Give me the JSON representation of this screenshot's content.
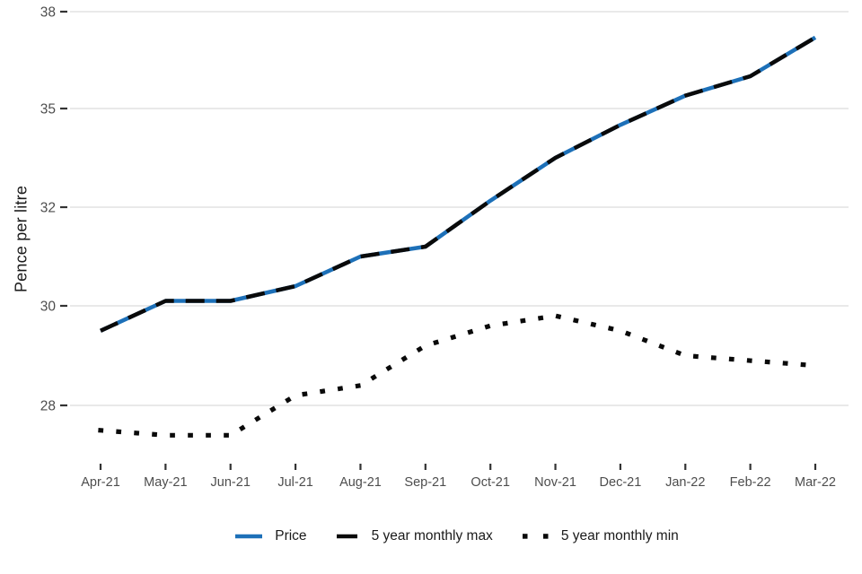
{
  "chart_data": {
    "type": "line",
    "title": "",
    "xlabel": "",
    "ylabel": "Pence per litre",
    "categories": [
      "Apr-21",
      "May-21",
      "Jun-21",
      "Jul-21",
      "Aug-21",
      "Sep-21",
      "Oct-21",
      "Nov-21",
      "Dec-21",
      "Jan-22",
      "Feb-22",
      "Mar-22"
    ],
    "y_ticks": [
      "38",
      "35",
      "32",
      "30",
      "28"
    ],
    "y_tick_values": [
      38,
      35,
      32,
      30,
      28
    ],
    "grid": "horizontal",
    "legend_position": "bottom",
    "series": [
      {
        "name": "Price",
        "style": "solid",
        "color": "#1d70b8",
        "values": [
          29.5,
          30.1,
          30.1,
          30.4,
          31.0,
          31.2,
          32.2,
          33.5,
          34.5,
          35.4,
          36.0,
          37.2
        ]
      },
      {
        "name": "5 year monthly max",
        "style": "dashed",
        "color": "#0a0a0a",
        "values": [
          29.5,
          30.1,
          30.1,
          30.4,
          31.0,
          31.2,
          32.2,
          33.5,
          34.5,
          35.4,
          36.0,
          37.2
        ]
      },
      {
        "name": "5 year monthly min",
        "style": "dotted",
        "color": "#0a0a0a",
        "values": [
          27.5,
          27.4,
          27.4,
          28.2,
          28.4,
          29.2,
          29.6,
          29.8,
          29.5,
          29.0,
          28.9,
          28.8
        ]
      }
    ],
    "colors": {
      "grid": "#e6e6e6",
      "tick_mark": "#333333",
      "tick_label": "#4d4d4d",
      "axis_title": "#1a1a1a"
    }
  }
}
